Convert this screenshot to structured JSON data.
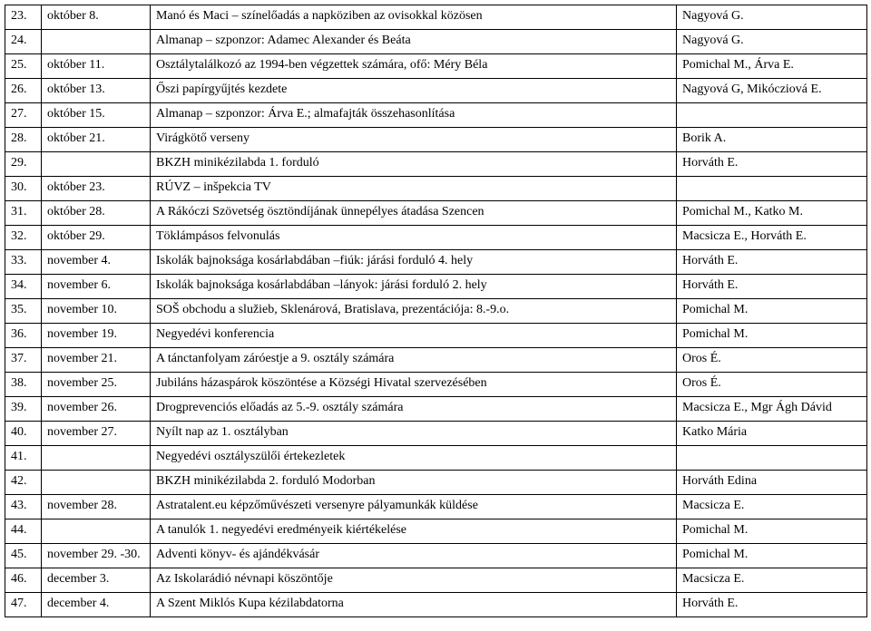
{
  "columns": [
    "num",
    "date",
    "event",
    "person"
  ],
  "rows": [
    {
      "num": "23.",
      "date": "október 8.",
      "event": "Manó és Maci – színelőadás a napköziben az ovisokkal közösen",
      "person": "Nagyová G."
    },
    {
      "num": "24.",
      "date": "",
      "event": "Almanap – szponzor: Adamec Alexander és Beáta",
      "person": "Nagyová G."
    },
    {
      "num": "25.",
      "date": "október 11.",
      "event": "Osztálytalálkozó az 1994-ben végzettek számára, ofő: Méry Béla",
      "person": "Pomichal M., Árva E."
    },
    {
      "num": "26.",
      "date": "október 13.",
      "event": "Őszi papírgyűjtés kezdete",
      "person": "Nagyová G, Mikócziová E."
    },
    {
      "num": "27.",
      "date": "október 15.",
      "event": "Almanap – szponzor: Árva E.; almafajták összehasonlítása",
      "person": ""
    },
    {
      "num": "28.",
      "date": "október 21.",
      "event": "Virágkötő verseny",
      "person": "Borik A."
    },
    {
      "num": "29.",
      "date": "",
      "event": "BKZH minikézilabda 1. forduló",
      "person": "Horváth E."
    },
    {
      "num": "30.",
      "date": "október 23.",
      "event": "RÚVZ – inšpekcia TV",
      "person": ""
    },
    {
      "num": "31.",
      "date": "október 28.",
      "event": "A Rákóczi Szövetség ösztöndíjának ünnepélyes átadása Szencen",
      "person": "Pomichal M., Katko M."
    },
    {
      "num": "32.",
      "date": "október 29.",
      "event": "Töklámpásos felvonulás",
      "person": "Macsicza E., Horváth E."
    },
    {
      "num": "33.",
      "date": "november 4.",
      "event": "Iskolák bajnoksága kosárlabdában –fiúk: járási forduló 4. hely",
      "person": "Horváth E."
    },
    {
      "num": "34.",
      "date": "november 6.",
      "event": "Iskolák bajnoksága kosárlabdában –lányok: járási forduló 2. hely",
      "person": "Horváth E."
    },
    {
      "num": "35.",
      "date": "november 10.",
      "event": "SOŠ obchodu a služieb, Sklenárová, Bratislava, prezentációja: 8.-9.o.",
      "person": "Pomichal M."
    },
    {
      "num": "36.",
      "date": "november 19.",
      "event": "Negyedévi konferencia",
      "person": "Pomichal M."
    },
    {
      "num": "37.",
      "date": "november 21.",
      "event": "A tánctanfolyam záróestje a 9. osztály számára",
      "person": "Oros É."
    },
    {
      "num": "38.",
      "date": "november 25.",
      "event": "Jubiláns házaspárok köszöntése a Községi Hivatal szervezésében",
      "person": "Oros É."
    },
    {
      "num": "39.",
      "date": "november 26.",
      "event": "Drogprevenciós előadás az 5.-9. osztály számára",
      "person": "Macsicza E., Mgr Ágh Dávid"
    },
    {
      "num": "40.",
      "date": "november 27.",
      "event": "Nyílt nap az 1. osztályban",
      "person": "Katko Mária"
    },
    {
      "num": "41.",
      "date": "",
      "event": "Negyedévi osztályszülői értekezletek",
      "person": ""
    },
    {
      "num": "42.",
      "date": "",
      "event": "BKZH minikézilabda 2. forduló Modorban",
      "person": "Horváth Edina"
    },
    {
      "num": "43.",
      "date": "november 28.",
      "event": "Astratalent.eu képzőművészeti versenyre pályamunkák küldése",
      "person": "Macsicza E."
    },
    {
      "num": "44.",
      "date": "",
      "event": "A tanulók 1. negyedévi eredményeik kiértékelése",
      "person": "Pomichal M."
    },
    {
      "num": "45.",
      "date": "november 29. -30.",
      "event": "Adventi könyv- és ajándékvásár",
      "person": "Pomichal M."
    },
    {
      "num": "46.",
      "date": "december 3.",
      "event": "Az Iskolarádió névnapi köszöntője",
      "person": "Macsicza E."
    },
    {
      "num": "47.",
      "date": "december 4.",
      "event": "A Szent Miklós Kupa kézilabdatorna",
      "person": "Horváth E."
    }
  ]
}
